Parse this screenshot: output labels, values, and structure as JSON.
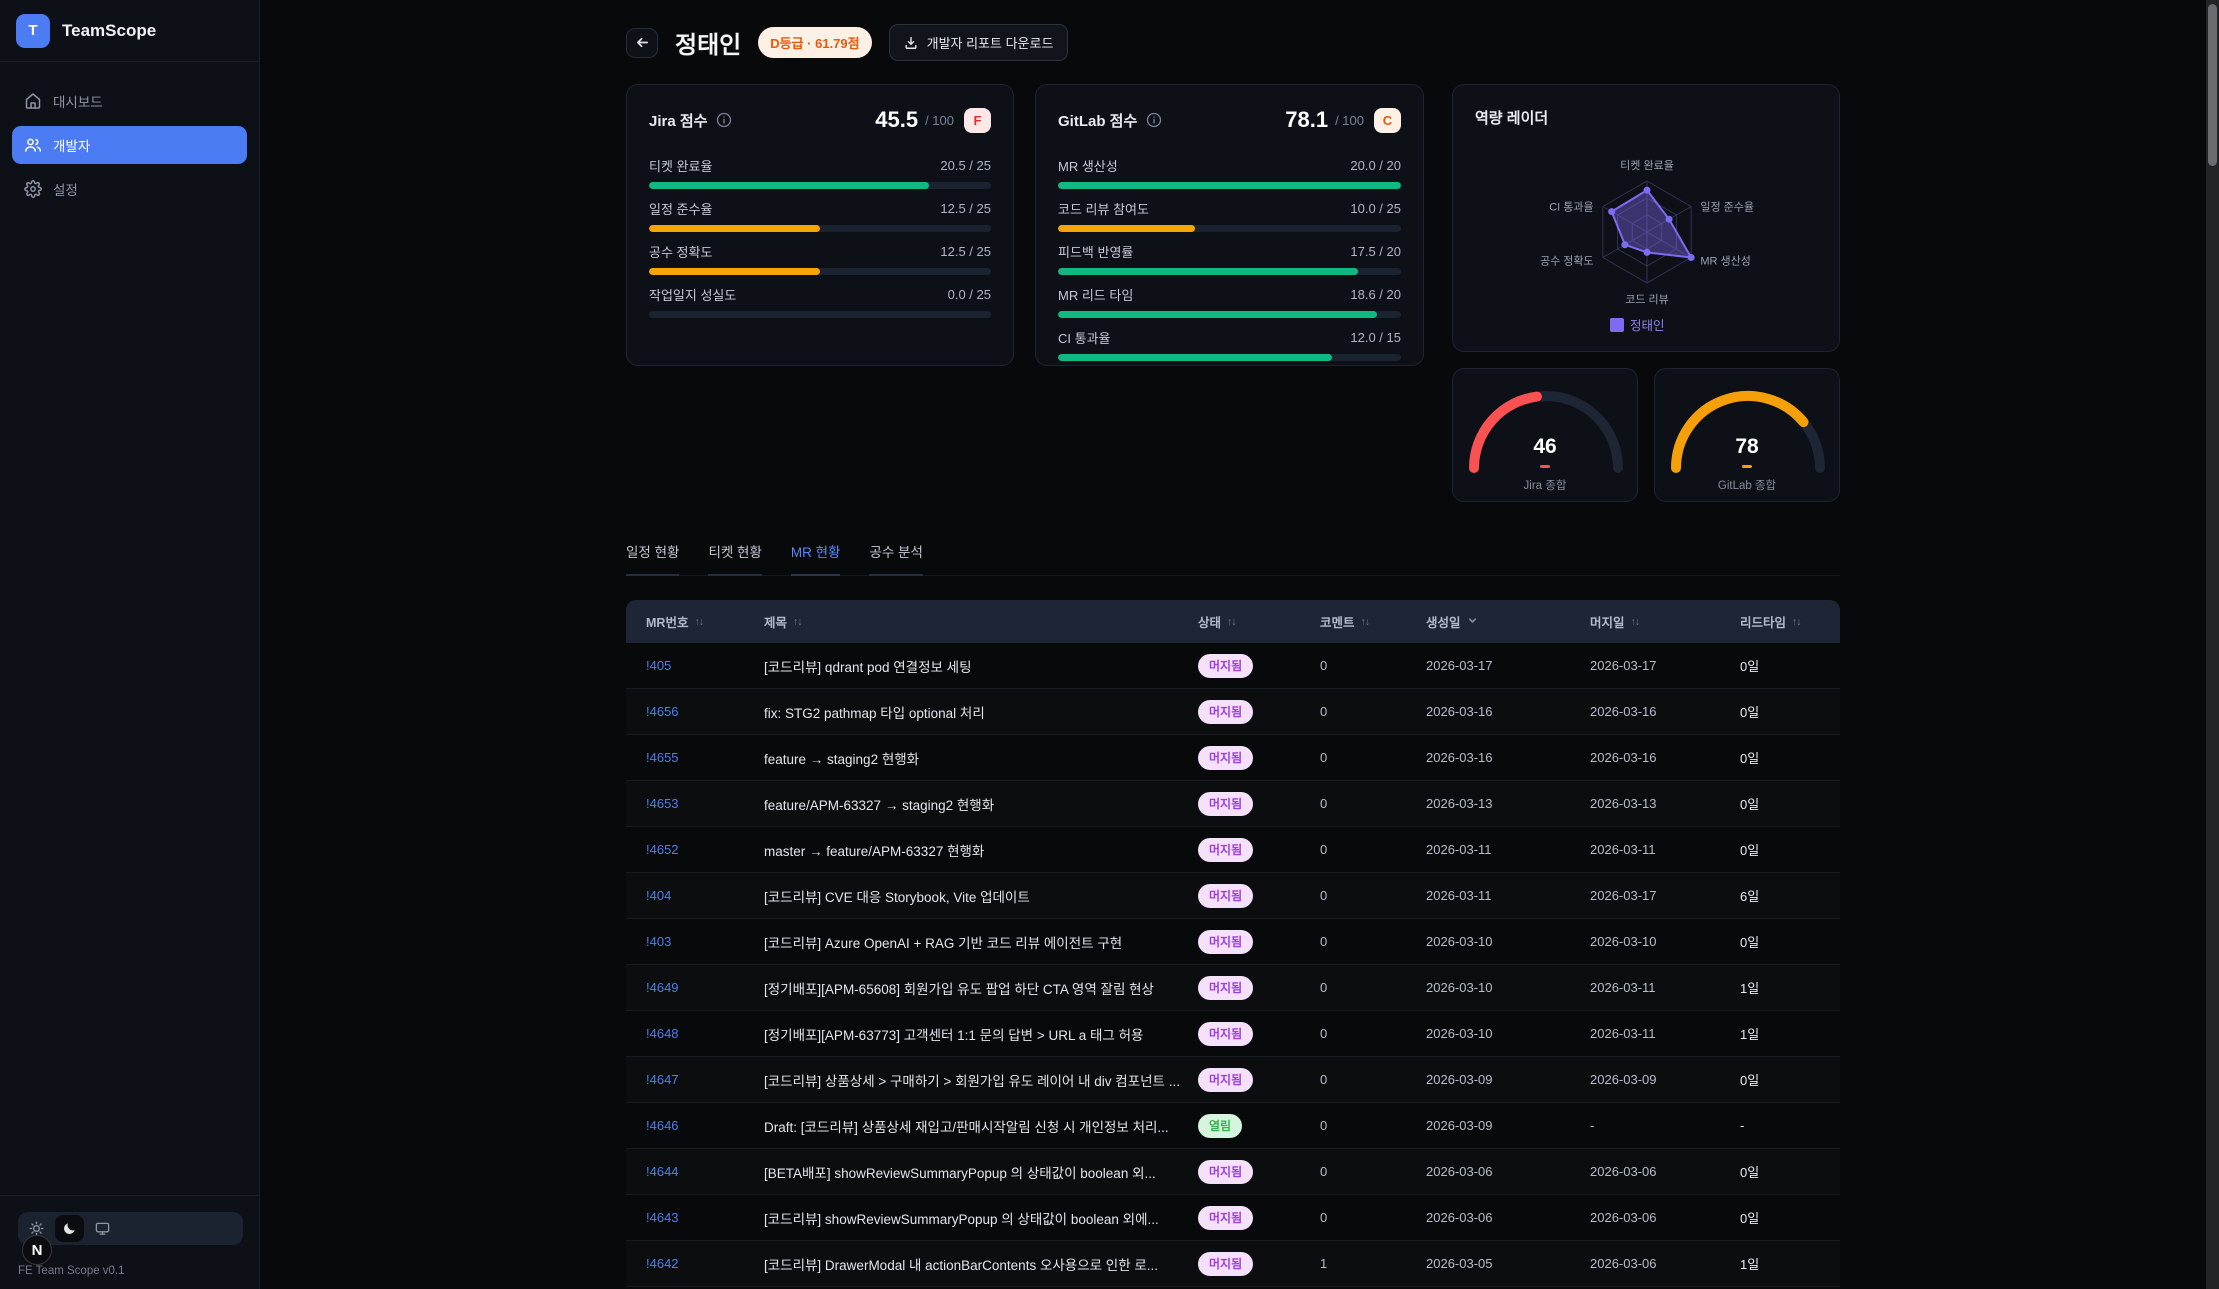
{
  "sidebar": {
    "logo_letter": "T",
    "app_name": "TeamScope",
    "items": [
      {
        "label": "대시보드",
        "icon": "home-icon",
        "active": false
      },
      {
        "label": "개발자",
        "icon": "users-icon",
        "active": true
      },
      {
        "label": "설정",
        "icon": "gear-icon",
        "active": false
      }
    ],
    "theme_switcher": [
      {
        "icon": "sun-icon",
        "active": false
      },
      {
        "icon": "moon-icon",
        "active": true
      },
      {
        "icon": "monitor-icon",
        "active": false
      }
    ],
    "dev_badge": "N",
    "version": "FE Team Scope v0.1"
  },
  "header": {
    "title": "정태인",
    "grade_badge": "D등급 · 61.79점",
    "download_label": "개발자 리포트 다운로드"
  },
  "jira_card": {
    "title": "Jira 점수",
    "score": "45.5",
    "denominator": "/ 100",
    "grade": "F",
    "grade_bg": "#fde8e8",
    "grade_color": "#e03131",
    "metrics": [
      {
        "label": "티켓 완료율",
        "value": 20.5,
        "max": 25,
        "display": "20.5 / 25",
        "color": "#10b981"
      },
      {
        "label": "일정 준수율",
        "value": 12.5,
        "max": 25,
        "display": "12.5 / 25",
        "color": "#f7a409"
      },
      {
        "label": "공수 정확도",
        "value": 12.5,
        "max": 25,
        "display": "12.5 / 25",
        "color": "#f7a409"
      },
      {
        "label": "작업일지 성실도",
        "value": 0,
        "max": 25,
        "display": "0.0 / 25",
        "color": "#10b981"
      }
    ]
  },
  "gitlab_card": {
    "title": "GitLab 점수",
    "score": "78.1",
    "denominator": "/ 100",
    "grade": "C",
    "grade_bg": "#fdf0e4",
    "grade_color": "#e8590c",
    "metrics": [
      {
        "label": "MR 생산성",
        "value": 20,
        "max": 20,
        "display": "20.0 / 20",
        "color": "#10b981"
      },
      {
        "label": "코드 리뷰 참여도",
        "value": 10,
        "max": 25,
        "display": "10.0 / 25",
        "color": "#f7a409"
      },
      {
        "label": "피드백 반영률",
        "value": 17.5,
        "max": 20,
        "display": "17.5 / 20",
        "color": "#10b981"
      },
      {
        "label": "MR 리드 타임",
        "value": 18.6,
        "max": 20,
        "display": "18.6 / 20",
        "color": "#10b981"
      },
      {
        "label": "CI 통과율",
        "value": 12,
        "max": 15,
        "display": "12.0 / 15",
        "color": "#10b981"
      }
    ]
  },
  "chart_data": [
    {
      "type": "radar",
      "title": "역량 레이더",
      "categories": [
        "티켓 완료율",
        "일정 준수율",
        "MR 생산성",
        "코드 리뷰",
        "공수 정확도",
        "CI 통과율"
      ],
      "values": [
        0.82,
        0.5,
        1.0,
        0.4,
        0.5,
        0.8
      ],
      "legend": "정태인",
      "color": "#7c6cf2"
    },
    {
      "type": "gauge",
      "value": 46,
      "max": 100,
      "label": "Jira 종합",
      "color": "#fa5252"
    },
    {
      "type": "gauge",
      "value": 78,
      "max": 100,
      "label": "GitLab 종합",
      "color": "#f5a009"
    }
  ],
  "tabs": [
    {
      "label": "일정 현황",
      "active": false
    },
    {
      "label": "티켓 현황",
      "active": false
    },
    {
      "label": "MR 현황",
      "active": true
    },
    {
      "label": "공수 분석",
      "active": false
    }
  ],
  "table": {
    "columns": [
      {
        "label": "MR번호",
        "sort": "both"
      },
      {
        "label": "제목",
        "sort": "both"
      },
      {
        "label": "상태",
        "sort": "both"
      },
      {
        "label": "코멘트",
        "sort": "both"
      },
      {
        "label": "생성일",
        "sort": "desc"
      },
      {
        "label": "머지일",
        "sort": "both"
      },
      {
        "label": "리드타임",
        "sort": "both"
      }
    ],
    "status_styles": {
      "머지됨": {
        "bg": "#f5e1fc",
        "color": "#a13de0"
      },
      "열림": {
        "bg": "#d6f5dd",
        "color": "#37b24d"
      }
    },
    "rows": [
      {
        "mr": "!405",
        "title": "[코드리뷰] qdrant pod 연결정보 세팅",
        "status": "머지됨",
        "comments": "0",
        "created": "2026-03-17",
        "merged": "2026-03-17",
        "lead": "0일"
      },
      {
        "mr": "!4656",
        "title": "fix: STG2 pathmap 타입 optional 처리",
        "status": "머지됨",
        "comments": "0",
        "created": "2026-03-16",
        "merged": "2026-03-16",
        "lead": "0일"
      },
      {
        "mr": "!4655",
        "title": "feature → staging2 현행화",
        "status": "머지됨",
        "comments": "0",
        "created": "2026-03-16",
        "merged": "2026-03-16",
        "lead": "0일"
      },
      {
        "mr": "!4653",
        "title": "feature/APM-63327 → staging2 현행화",
        "status": "머지됨",
        "comments": "0",
        "created": "2026-03-13",
        "merged": "2026-03-13",
        "lead": "0일"
      },
      {
        "mr": "!4652",
        "title": "master → feature/APM-63327 현행화",
        "status": "머지됨",
        "comments": "0",
        "created": "2026-03-11",
        "merged": "2026-03-11",
        "lead": "0일"
      },
      {
        "mr": "!404",
        "title": "[코드리뷰] CVE 대응 Storybook, Vite 업데이트",
        "status": "머지됨",
        "comments": "0",
        "created": "2026-03-11",
        "merged": "2026-03-17",
        "lead": "6일"
      },
      {
        "mr": "!403",
        "title": "[코드리뷰] Azure OpenAI + RAG 기반 코드 리뷰 에이전트 구현",
        "status": "머지됨",
        "comments": "0",
        "created": "2026-03-10",
        "merged": "2026-03-10",
        "lead": "0일"
      },
      {
        "mr": "!4649",
        "title": "[정기배포][APM-65608] 회원가입 유도 팝업 하단 CTA 영역 잘림 현상",
        "status": "머지됨",
        "comments": "0",
        "created": "2026-03-10",
        "merged": "2026-03-11",
        "lead": "1일"
      },
      {
        "mr": "!4648",
        "title": "[정기배포][APM-63773] 고객센터 1:1 문의 답변 > URL a 태그 허용",
        "status": "머지됨",
        "comments": "0",
        "created": "2026-03-10",
        "merged": "2026-03-11",
        "lead": "1일"
      },
      {
        "mr": "!4647",
        "title": "[코드리뷰] 상품상세 > 구매하기 > 회원가입 유도 레이어 내 div 컴포넌트 ...",
        "status": "머지됨",
        "comments": "0",
        "created": "2026-03-09",
        "merged": "2026-03-09",
        "lead": "0일"
      },
      {
        "mr": "!4646",
        "title": "Draft: [코드리뷰] 상품상세 재입고/판매시작알림 신청 시 개인정보 처리...",
        "status": "열림",
        "comments": "0",
        "created": "2026-03-09",
        "merged": "-",
        "lead": "-"
      },
      {
        "mr": "!4644",
        "title": "[BETA배포] showReviewSummaryPopup 의 상태값이 boolean 외...",
        "status": "머지됨",
        "comments": "0",
        "created": "2026-03-06",
        "merged": "2026-03-06",
        "lead": "0일"
      },
      {
        "mr": "!4643",
        "title": "[코드리뷰] showReviewSummaryPopup 의 상태값이 boolean 외에...",
        "status": "머지됨",
        "comments": "0",
        "created": "2026-03-06",
        "merged": "2026-03-06",
        "lead": "0일"
      },
      {
        "mr": "!4642",
        "title": "[코드리뷰] DrawerModal 내 actionBarContents 오사용으로 인한 로...",
        "status": "머지됨",
        "comments": "1",
        "created": "2026-03-05",
        "merged": "2026-03-06",
        "lead": "1일"
      }
    ]
  }
}
